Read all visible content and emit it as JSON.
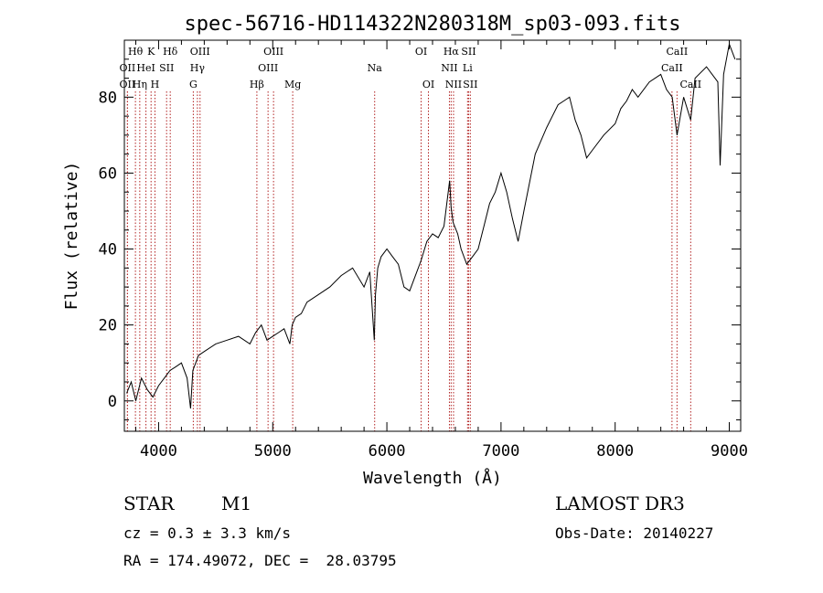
{
  "chart_data": {
    "type": "line",
    "title": "spec-56716-HD114322N280318M_sp03-093.fits",
    "xlabel": "Wavelength (Å)",
    "ylabel": "Flux (relative)",
    "xlim": [
      3700,
      9100
    ],
    "ylim": [
      -8,
      95
    ],
    "xticks": [
      4000,
      5000,
      6000,
      7000,
      8000,
      9000
    ],
    "yticks": [
      0,
      20,
      40,
      60,
      80
    ],
    "series": [
      {
        "name": "flux",
        "x": [
          3720,
          3760,
          3800,
          3850,
          3900,
          3950,
          4000,
          4050,
          4100,
          4150,
          4200,
          4250,
          4280,
          4300,
          4350,
          4400,
          4500,
          4600,
          4700,
          4800,
          4850,
          4900,
          4950,
          5000,
          5050,
          5100,
          5150,
          5170,
          5200,
          5250,
          5300,
          5400,
          5500,
          5600,
          5700,
          5800,
          5850,
          5890,
          5900,
          5920,
          5950,
          6000,
          6050,
          6100,
          6150,
          6200,
          6250,
          6300,
          6350,
          6400,
          6450,
          6500,
          6550,
          6563,
          6580,
          6620,
          6650,
          6700,
          6750,
          6800,
          6850,
          6900,
          6950,
          7000,
          7050,
          7100,
          7150,
          7200,
          7300,
          7400,
          7500,
          7550,
          7600,
          7650,
          7700,
          7750,
          7800,
          7900,
          8000,
          8050,
          8100,
          8150,
          8200,
          8300,
          8400,
          8450,
          8500,
          8542,
          8600,
          8662,
          8700,
          8800,
          8850,
          8900,
          8920,
          8950,
          9000,
          9050
        ],
        "y": [
          2,
          5,
          0,
          6,
          3,
          1,
          4,
          6,
          8,
          9,
          10,
          6,
          -2,
          8,
          12,
          13,
          15,
          16,
          17,
          15,
          18,
          20,
          16,
          17,
          18,
          19,
          15,
          20,
          22,
          23,
          26,
          28,
          30,
          33,
          35,
          30,
          34,
          16,
          28,
          35,
          38,
          40,
          38,
          36,
          30,
          29,
          33,
          37,
          42,
          44,
          43,
          46,
          58,
          51,
          47,
          44,
          40,
          36,
          38,
          40,
          46,
          52,
          55,
          60,
          55,
          48,
          42,
          50,
          65,
          72,
          78,
          79,
          80,
          74,
          70,
          64,
          66,
          70,
          73,
          77,
          79,
          82,
          80,
          84,
          86,
          82,
          80,
          70,
          80,
          74,
          85,
          88,
          86,
          84,
          62,
          86,
          94,
          90
        ]
      }
    ],
    "line_markers": [
      {
        "wavelength": 3797,
        "label": "Hθ",
        "row": 1
      },
      {
        "wavelength": 3727,
        "label": "OII",
        "row": 2
      },
      {
        "wavelength": 3727,
        "label": "OII",
        "row": 3
      },
      {
        "wavelength": 3835,
        "label": "Hη",
        "row": 3
      },
      {
        "wavelength": 3889,
        "label": "HeI",
        "row": 2
      },
      {
        "wavelength": 3934,
        "label": "K",
        "row": 1
      },
      {
        "wavelength": 3968,
        "label": "H",
        "row": 3
      },
      {
        "wavelength": 4070,
        "label": "SII",
        "row": 2
      },
      {
        "wavelength": 4102,
        "label": "Hδ",
        "row": 1
      },
      {
        "wavelength": 4304,
        "label": "G",
        "row": 3
      },
      {
        "wavelength": 4340,
        "label": "Hγ",
        "row": 2
      },
      {
        "wavelength": 4363,
        "label": "OIII",
        "row": 1
      },
      {
        "wavelength": 4861,
        "label": "Hβ",
        "row": 3
      },
      {
        "wavelength": 4959,
        "label": "OIII",
        "row": 2
      },
      {
        "wavelength": 5007,
        "label": "OIII",
        "row": 1
      },
      {
        "wavelength": 5175,
        "label": "Mg",
        "row": 3
      },
      {
        "wavelength": 5893,
        "label": "Na",
        "row": 2
      },
      {
        "wavelength": 6300,
        "label": "OI",
        "row": 1
      },
      {
        "wavelength": 6364,
        "label": "OI",
        "row": 3
      },
      {
        "wavelength": 6548,
        "label": "NII",
        "row": 2
      },
      {
        "wavelength": 6563,
        "label": "Hα",
        "row": 1
      },
      {
        "wavelength": 6584,
        "label": "NII",
        "row": 3
      },
      {
        "wavelength": 6707,
        "label": "Li",
        "row": 2
      },
      {
        "wavelength": 6716,
        "label": "SII",
        "row": 1
      },
      {
        "wavelength": 6731,
        "label": "SII",
        "row": 3
      },
      {
        "wavelength": 8498,
        "label": "CaII",
        "row": 2
      },
      {
        "wavelength": 8542,
        "label": "CaII",
        "row": 1
      },
      {
        "wavelength": 8662,
        "label": "CaII",
        "row": 3
      }
    ]
  },
  "info": {
    "class": "STAR",
    "subclass": "M1",
    "survey": "LAMOST DR3",
    "cz": "cz = 0.3 ± 3.3 km/s",
    "obs_date": "Obs-Date: 20140227",
    "coords": "RA = 174.49072, DEC =  28.03795"
  },
  "colors": {
    "line_marker": "#b22222",
    "spectrum": "#000000"
  }
}
